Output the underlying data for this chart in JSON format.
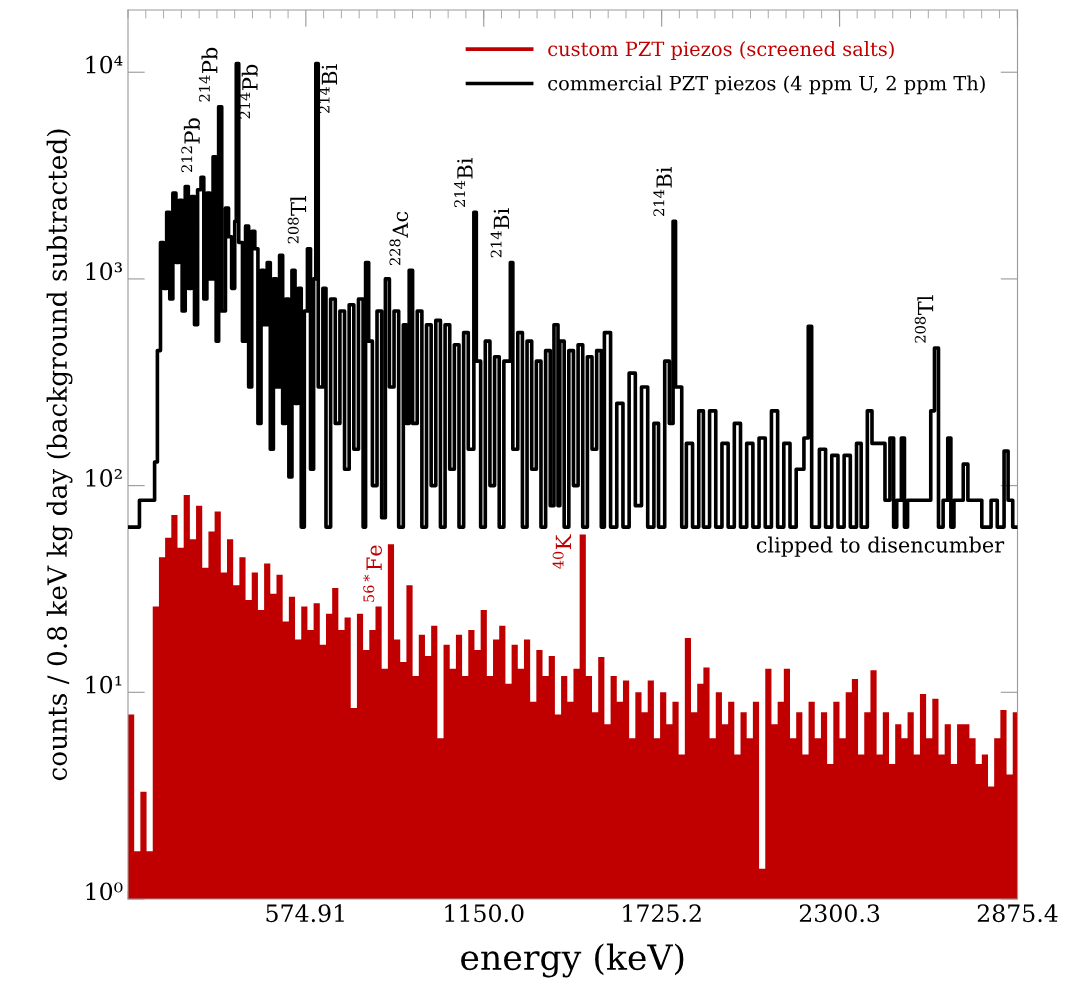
{
  "chart_data": {
    "type": "step",
    "xlabel": "energy (keV)",
    "ylabel": "counts / 0.8 keV kg day (background subtracted)",
    "xlim": [
      0,
      2875.4
    ],
    "xticks": [
      574.91,
      {
        "value": 1150.0,
        "label": "1150.0"
      },
      1725.2,
      2300.3,
      2875.4
    ],
    "ylim": [
      1,
      20000
    ],
    "yticks": [
      {
        "value": 1,
        "label": "10⁰"
      },
      {
        "value": 10,
        "label": "10¹"
      },
      {
        "value": 100,
        "label": "10²"
      },
      {
        "value": 1000,
        "label": "10³"
      },
      {
        "value": 10000,
        "label": "10⁴"
      }
    ],
    "log": true,
    "legend": "top right",
    "annotations": [
      "clipped to disencumber",
      {
        "text": "$^{56*}$Fe",
        "x": 848,
        "y": 52
      },
      {
        "text": "$^{40}$K",
        "x": 1460,
        "y": 58
      },
      {
        "text": "$^{212}$Pb",
        "x": 236,
        "y": 3100
      },
      {
        "text": "$^{214}$Pb",
        "x": 293,
        "y": 6800
      },
      {
        "text": "$^{214}$Pb",
        "x": 350,
        "y": 11000
      },
      {
        "text": "$^{208}$Tl",
        "x": 580,
        "y": 1400
      },
      {
        "text": "$^{214}$Bi",
        "x": 607,
        "y": 11000
      },
      {
        "text": "$^{228}$Ac",
        "x": 909,
        "y": 1100
      },
      {
        "text": "$^{214}$Bi",
        "x": 1118,
        "y": 2100
      },
      {
        "text": "$^{214}$Bi",
        "x": 1236,
        "y": 1200
      },
      {
        "text": "$^{214}$Bi",
        "x": 1762,
        "y": 1900
      },
      {
        "text": "$^{208}$Tl",
        "x": 2607,
        "y": 463
      }
    ],
    "series": [
      {
        "name": "custom PZT piezos (screened salts)",
        "color": "#c00000",
        "type": "area",
        "x": [
          0,
          20,
          40,
          60,
          80,
          100,
          120,
          140,
          160,
          180,
          200,
          220,
          240,
          260,
          280,
          300,
          320,
          340,
          360,
          380,
          400,
          420,
          440,
          460,
          480,
          500,
          520,
          540,
          560,
          580,
          600,
          620,
          640,
          660,
          680,
          700,
          720,
          740,
          760,
          780,
          800,
          820,
          840,
          860,
          880,
          900,
          920,
          940,
          960,
          980,
          1000,
          1020,
          1040,
          1060,
          1080,
          1100,
          1120,
          1140,
          1160,
          1180,
          1200,
          1220,
          1240,
          1260,
          1280,
          1300,
          1320,
          1340,
          1360,
          1380,
          1400,
          1420,
          1440,
          1460,
          1480,
          1500,
          1520,
          1540,
          1560,
          1580,
          1600,
          1620,
          1640,
          1660,
          1680,
          1700,
          1720,
          1740,
          1760,
          1780,
          1800,
          1820,
          1840,
          1860,
          1880,
          1900,
          1920,
          1940,
          1960,
          1980,
          2000,
          2020,
          2040,
          2060,
          2080,
          2100,
          2120,
          2140,
          2160,
          2180,
          2200,
          2220,
          2240,
          2260,
          2280,
          2300,
          2320,
          2340,
          2360,
          2380,
          2400,
          2420,
          2440,
          2460,
          2480,
          2500,
          2520,
          2540,
          2560,
          2580,
          2600,
          2620,
          2640,
          2660,
          2680,
          2700,
          2720,
          2740,
          2760,
          2780,
          2800,
          2820,
          2840,
          2860,
          2875.4
        ],
        "values": [
          7.8,
          1.7,
          3.3,
          1.7,
          26,
          45,
          56,
          72,
          50,
          90,
          55,
          80,
          40,
          60,
          75,
          38,
          55,
          33,
          45,
          28,
          38,
          25,
          42,
          30,
          37,
          22,
          29,
          18,
          26,
          20,
          27,
          17,
          24,
          32,
          20,
          23,
          8.4,
          24,
          16,
          20,
          26,
          13,
          52,
          18,
          14,
          33,
          12,
          19,
          15,
          21,
          6,
          17,
          13,
          19,
          12,
          20,
          16,
          25,
          12,
          18,
          21,
          11,
          17,
          13,
          18,
          9,
          16,
          12,
          15,
          7.8,
          12,
          9,
          13,
          58,
          12,
          8,
          14.8,
          7,
          12,
          9,
          11.4,
          6,
          10,
          8,
          11.4,
          6,
          10,
          7,
          9,
          5,
          18.3,
          8,
          11,
          13.2,
          6,
          10,
          7,
          9,
          5,
          8,
          6,
          9,
          1.4,
          13,
          7,
          9,
          13,
          6,
          8,
          5,
          9,
          6,
          8,
          4.5,
          9,
          6,
          10,
          11.6,
          5,
          8,
          12.8,
          5,
          8,
          4.5,
          7,
          6,
          8,
          5,
          9.8,
          6,
          9.3,
          5,
          7,
          4.5,
          7,
          7,
          6,
          4.5,
          5,
          3.5,
          6,
          8.2,
          4,
          8,
          8
        ]
      },
      {
        "name": "commercial PZT piezos (4 ppm U, 2 ppm Th)",
        "color": "#000000",
        "x": [
          0,
          37,
          86,
          95,
          105,
          115,
          125,
          135,
          145,
          155,
          165,
          175,
          185,
          195,
          205,
          215,
          225,
          236,
          245,
          255,
          265,
          275,
          285,
          293,
          303,
          315,
          325,
          335,
          345,
          350,
          358,
          370,
          380,
          390,
          400,
          410,
          420,
          430,
          440,
          450,
          460,
          470,
          480,
          490,
          500,
          510,
          520,
          530,
          540,
          550,
          560,
          570,
          580,
          590,
          600,
          607,
          615,
          630,
          640,
          655,
          670,
          685,
          700,
          715,
          730,
          745,
          760,
          768,
          778,
          790,
          805,
          820,
          832,
          845,
          860,
          875,
          890,
          900,
          909,
          920,
          935,
          950,
          965,
          980,
          995,
          1010,
          1025,
          1040,
          1055,
          1070,
          1085,
          1100,
          1118,
          1126,
          1140,
          1155,
          1170,
          1185,
          1200,
          1215,
          1236,
          1244,
          1260,
          1275,
          1290,
          1305,
          1320,
          1335,
          1350,
          1365,
          1377,
          1390,
          1396,
          1410,
          1425,
          1440,
          1455,
          1470,
          1485,
          1500,
          1515,
          1530,
          1540,
          1560,
          1580,
          1600,
          1620,
          1640,
          1660,
          1680,
          1700,
          1715,
          1735,
          1750,
          1762,
          1770,
          1790,
          1805,
          1825,
          1845,
          1860,
          1880,
          1900,
          1920,
          1940,
          1960,
          1980,
          2000,
          2020,
          2040,
          2060,
          2080,
          2100,
          2120,
          2140,
          2160,
          2185,
          2199,
          2210,
          2235,
          2255,
          2275,
          2295,
          2315,
          2335,
          2355,
          2370,
          2390,
          2405,
          2430,
          2447,
          2463,
          2475,
          2485,
          2500,
          2510,
          2520,
          2595,
          2607,
          2620,
          2635,
          2650,
          2660,
          2670,
          2700,
          2715,
          2760,
          2790,
          2810,
          2832,
          2845,
          2860,
          2875
        ],
        "values": [
          63,
          85,
          130,
          450,
          1500,
          900,
          2100,
          800,
          2600,
          1200,
          2400,
          700,
          2800,
          900,
          2500,
          600,
          2700,
          3100,
          800,
          2600,
          1000,
          3900,
          500,
          6800,
          700,
          2200,
          1600,
          900,
          1900,
          11000,
          1500,
          500,
          1800,
          300,
          1700,
          1400,
          200,
          1100,
          600,
          1200,
          150,
          1000,
          300,
          1300,
          200,
          800,
          110,
          1100,
          250,
          900,
          63,
          700,
          1400,
          120,
          1000,
          11000,
          300,
          900,
          63,
          800,
          200,
          700,
          120,
          750,
          150,
          800,
          63,
          1200,
          500,
          100,
          700,
          70,
          1000,
          300,
          700,
          63,
          600,
          200,
          1100,
          200,
          700,
          63,
          600,
          100,
          630,
          63,
          600,
          120,
          480,
          63,
          550,
          150,
          2100,
          400,
          63,
          500,
          100,
          420,
          63,
          400,
          1200,
          150,
          550,
          63,
          500,
          120,
          400,
          63,
          450,
          80,
          600,
          80,
          500,
          63,
          450,
          100,
          480,
          63,
          420,
          150,
          450,
          63,
          550,
          63,
          250,
          63,
          350,
          80,
          300,
          63,
          200,
          63,
          400,
          200,
          1900,
          300,
          63,
          160,
          63,
          230,
          63,
          230,
          63,
          160,
          63,
          200,
          63,
          160,
          63,
          170,
          63,
          230,
          63,
          160,
          63,
          120,
          170,
          590,
          63,
          150,
          63,
          140,
          63,
          140,
          63,
          160,
          63,
          230,
          160,
          160,
          85,
          170,
          63,
          85,
          170,
          63,
          85,
          230,
          463,
          63,
          85,
          170,
          63,
          85,
          127,
          85,
          63,
          85,
          63,
          147,
          85,
          63,
          63
        ]
      }
    ]
  }
}
